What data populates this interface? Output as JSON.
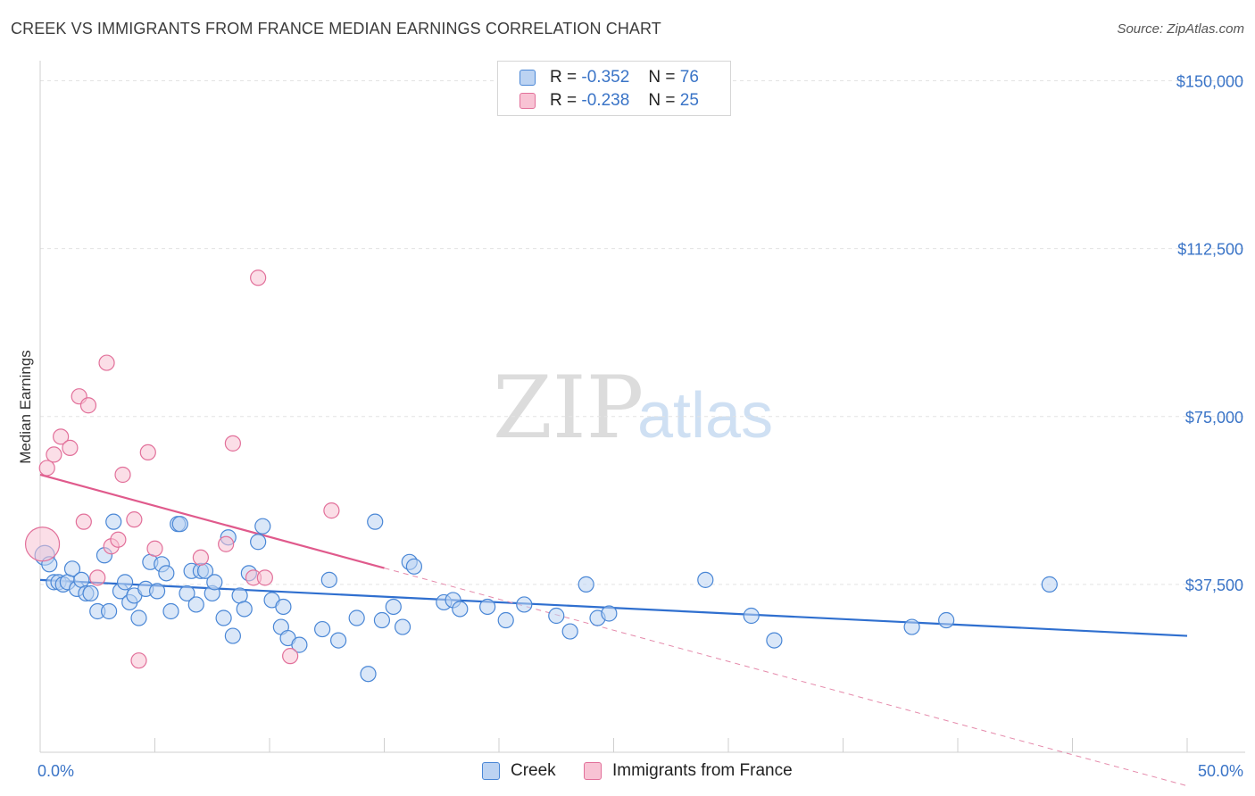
{
  "title": "CREEK VS IMMIGRANTS FROM FRANCE MEDIAN EARNINGS CORRELATION CHART",
  "source": "Source: ZipAtlas.com",
  "watermark": {
    "zip": "ZIP",
    "atlas": "atlas"
  },
  "colors": {
    "creek": "#4a87d6",
    "creek_fill": "#bcd3f2",
    "france": "#e2709a",
    "france_fill": "#f8c3d4",
    "axis_text": "#3a74c7",
    "grid": "#e3e3e3"
  },
  "legend": {
    "creek": {
      "r_label": "R =",
      "r_value": "-0.352",
      "n_label": "N =",
      "n_value": "76"
    },
    "france": {
      "r_label": "R =",
      "r_value": "-0.238",
      "n_label": "N =",
      "n_value": "25"
    }
  },
  "chart_data": {
    "type": "scatter",
    "title": "CREEK VS IMMIGRANTS FROM FRANCE MEDIAN EARNINGS CORRELATION CHART",
    "xlabel": "",
    "ylabel": "Median Earnings",
    "xlim": [
      0,
      50
    ],
    "ylim": [
      0,
      152500
    ],
    "x_tick_labels": [
      "0.0%",
      "50.0%"
    ],
    "y_ticks": [
      37500,
      75000,
      112500,
      150000
    ],
    "y_tick_labels": [
      "$37,500",
      "$75,000",
      "$112,500",
      "$150,000"
    ],
    "grid": true,
    "series": [
      {
        "name": "Creek",
        "r": -0.352,
        "n": 76,
        "trend": {
          "x0": 0,
          "y0": 38500,
          "x1": 50,
          "y1": 26000,
          "solid_until": 50
        },
        "points": [
          [
            0.2,
            44000
          ],
          [
            0.4,
            42000
          ],
          [
            0.6,
            38000
          ],
          [
            0.8,
            38000
          ],
          [
            1.0,
            37500
          ],
          [
            1.2,
            38000
          ],
          [
            1.4,
            41000
          ],
          [
            1.6,
            36500
          ],
          [
            1.8,
            38500
          ],
          [
            2.0,
            35500
          ],
          [
            2.2,
            35500
          ],
          [
            2.5,
            31500
          ],
          [
            2.8,
            44000
          ],
          [
            3.0,
            31500
          ],
          [
            3.2,
            51500
          ],
          [
            3.5,
            36000
          ],
          [
            3.7,
            38000
          ],
          [
            3.9,
            33500
          ],
          [
            4.1,
            35000
          ],
          [
            4.3,
            30000
          ],
          [
            4.6,
            36500
          ],
          [
            4.8,
            42500
          ],
          [
            5.1,
            36000
          ],
          [
            5.3,
            42000
          ],
          [
            5.5,
            40000
          ],
          [
            5.7,
            31500
          ],
          [
            6.0,
            51000
          ],
          [
            6.1,
            51000
          ],
          [
            6.4,
            35500
          ],
          [
            6.6,
            40500
          ],
          [
            6.8,
            33000
          ],
          [
            7.0,
            40500
          ],
          [
            7.2,
            40500
          ],
          [
            7.5,
            35500
          ],
          [
            7.6,
            38000
          ],
          [
            8.0,
            30000
          ],
          [
            8.2,
            48000
          ],
          [
            8.4,
            26000
          ],
          [
            8.7,
            35000
          ],
          [
            8.9,
            32000
          ],
          [
            9.1,
            40000
          ],
          [
            9.5,
            47000
          ],
          [
            9.7,
            50500
          ],
          [
            10.1,
            34000
          ],
          [
            10.5,
            28000
          ],
          [
            10.6,
            32500
          ],
          [
            10.8,
            25500
          ],
          [
            11.3,
            24000
          ],
          [
            12.3,
            27500
          ],
          [
            12.6,
            38500
          ],
          [
            13.0,
            25000
          ],
          [
            13.8,
            30000
          ],
          [
            14.3,
            17500
          ],
          [
            14.6,
            51500
          ],
          [
            14.9,
            29500
          ],
          [
            15.4,
            32500
          ],
          [
            15.8,
            28000
          ],
          [
            16.1,
            42500
          ],
          [
            16.3,
            41500
          ],
          [
            17.6,
            33500
          ],
          [
            18.0,
            34000
          ],
          [
            18.3,
            32000
          ],
          [
            19.5,
            32500
          ],
          [
            20.3,
            29500
          ],
          [
            21.1,
            33000
          ],
          [
            22.5,
            30500
          ],
          [
            23.1,
            27000
          ],
          [
            23.8,
            37500
          ],
          [
            24.3,
            30000
          ],
          [
            24.8,
            31000
          ],
          [
            29.0,
            38500
          ],
          [
            31.0,
            30500
          ],
          [
            32.0,
            25000
          ],
          [
            38.0,
            28000
          ],
          [
            39.5,
            29500
          ],
          [
            44.0,
            37500
          ]
        ]
      },
      {
        "name": "Immigrants from France",
        "r": -0.238,
        "n": 25,
        "trend": {
          "x0": 0,
          "y0": 62000,
          "x1": 50,
          "y1": -7500,
          "solid_until": 15
        },
        "points": [
          [
            0.1,
            46500
          ],
          [
            0.3,
            63500
          ],
          [
            0.6,
            66500
          ],
          [
            0.9,
            70500
          ],
          [
            1.3,
            68000
          ],
          [
            1.7,
            79500
          ],
          [
            1.9,
            51500
          ],
          [
            2.1,
            77500
          ],
          [
            2.5,
            39000
          ],
          [
            2.9,
            87000
          ],
          [
            3.1,
            46000
          ],
          [
            3.4,
            47500
          ],
          [
            3.6,
            62000
          ],
          [
            4.1,
            52000
          ],
          [
            4.3,
            20500
          ],
          [
            4.7,
            67000
          ],
          [
            5.0,
            45500
          ],
          [
            7.0,
            43500
          ],
          [
            8.1,
            46500
          ],
          [
            8.4,
            69000
          ],
          [
            9.3,
            39000
          ],
          [
            9.5,
            106000
          ],
          [
            9.8,
            39000
          ],
          [
            10.9,
            21500
          ],
          [
            12.7,
            54000
          ]
        ]
      }
    ]
  }
}
